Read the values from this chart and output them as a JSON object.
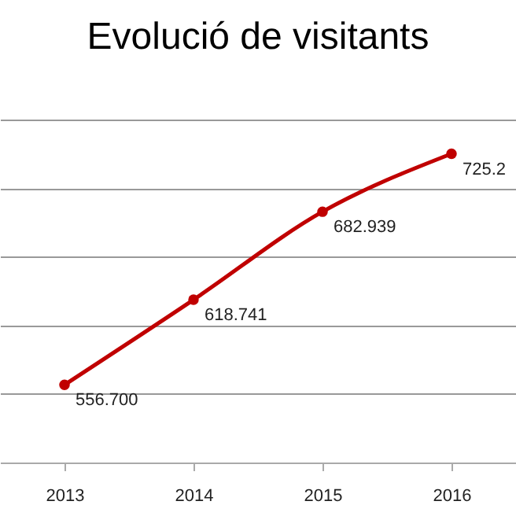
{
  "chart_data": {
    "type": "line",
    "title": "Evolució de visitants",
    "categories": [
      "2013",
      "2014",
      "2015",
      "2016"
    ],
    "series": [
      {
        "color": "#c00000",
        "values": [
          556.7,
          618.741,
          682.939,
          725.2
        ],
        "value_labels": [
          "556.700",
          "618.741",
          "682.939",
          "725.2"
        ]
      }
    ],
    "tick_labels": "x",
    "grid": "y",
    "marker": "circle"
  }
}
